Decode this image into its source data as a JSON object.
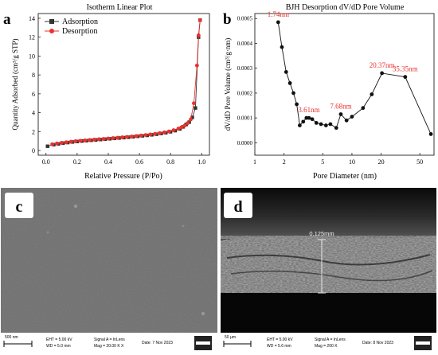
{
  "panels": {
    "a": {
      "letter": "a"
    },
    "b": {
      "letter": "b"
    },
    "c": {
      "letter": "c"
    },
    "d": {
      "letter": "d"
    }
  },
  "chart_data": [
    {
      "type": "line",
      "title": "Isotherm Linear Plot",
      "xlabel": "Relative Pressure (P/Po)",
      "ylabel": "Quantity Adsorbed (cm³/g STP)",
      "xlim": [
        -0.05,
        1.05
      ],
      "ylim": [
        -0.5,
        14.5
      ],
      "xticks": [
        "0.0",
        "0.2",
        "0.4",
        "0.6",
        "0.8",
        "1.0"
      ],
      "yticks": [
        "0",
        "2",
        "4",
        "6",
        "8",
        "10",
        "12",
        "14"
      ],
      "legend_position": "top-left",
      "series": [
        {
          "name": "Adsorption",
          "color": "#333333",
          "marker": "square",
          "x": [
            0.01,
            0.05,
            0.08,
            0.11,
            0.14,
            0.17,
            0.2,
            0.23,
            0.26,
            0.29,
            0.32,
            0.35,
            0.38,
            0.41,
            0.44,
            0.47,
            0.5,
            0.53,
            0.56,
            0.59,
            0.62,
            0.65,
            0.68,
            0.71,
            0.74,
            0.77,
            0.8,
            0.83,
            0.86,
            0.88,
            0.9,
            0.92,
            0.94,
            0.96,
            0.98,
            0.99
          ],
          "y": [
            0.45,
            0.62,
            0.7,
            0.78,
            0.84,
            0.9,
            0.95,
            1.0,
            1.04,
            1.08,
            1.12,
            1.16,
            1.2,
            1.24,
            1.28,
            1.32,
            1.36,
            1.4,
            1.45,
            1.5,
            1.55,
            1.6,
            1.66,
            1.72,
            1.8,
            1.88,
            1.98,
            2.1,
            2.28,
            2.5,
            2.75,
            3.0,
            3.5,
            4.5,
            12.0,
            13.8
          ]
        },
        {
          "name": "Desorption",
          "color": "#e8322d",
          "marker": "circle",
          "x": [
            0.99,
            0.98,
            0.97,
            0.95,
            0.93,
            0.91,
            0.89,
            0.87,
            0.85,
            0.82,
            0.79,
            0.76,
            0.73,
            0.7,
            0.67,
            0.64,
            0.61,
            0.58,
            0.55,
            0.52,
            0.49,
            0.46,
            0.43,
            0.4,
            0.37,
            0.34,
            0.31,
            0.28,
            0.25,
            0.22,
            0.19,
            0.16,
            0.13,
            0.1,
            0.07,
            0.04
          ],
          "y": [
            13.8,
            12.2,
            9.0,
            5.0,
            3.3,
            2.9,
            2.62,
            2.45,
            2.32,
            2.15,
            2.02,
            1.92,
            1.84,
            1.76,
            1.7,
            1.64,
            1.58,
            1.53,
            1.48,
            1.44,
            1.39,
            1.35,
            1.31,
            1.27,
            1.23,
            1.19,
            1.15,
            1.11,
            1.07,
            1.03,
            0.98,
            0.93,
            0.87,
            0.81,
            0.74,
            0.66
          ]
        }
      ]
    },
    {
      "type": "line",
      "title": "BJH Desorption dV/dD Pore Volume",
      "xlabel": "Pore Diameter (nm)",
      "ylabel": "dV/dD Pore Volume (cm³/g·nm)",
      "xscale": "log",
      "xlim": [
        1,
        70
      ],
      "ylim": [
        -5e-05,
        0.00052
      ],
      "xticks": [
        1,
        2,
        5,
        10,
        20,
        50
      ],
      "yticks": [
        "0.0000",
        "0.0001",
        "0.0002",
        "0.0003",
        "0.0004",
        "0.0005"
      ],
      "series": [
        {
          "color": "#111111",
          "marker": "circle",
          "x": [
            1.74,
            1.9,
            2.1,
            2.3,
            2.5,
            2.7,
            2.9,
            3.15,
            3.4,
            3.61,
            3.9,
            4.3,
            4.8,
            5.4,
            6.0,
            6.9,
            7.68,
            8.8,
            10.0,
            13.0,
            16.0,
            20.37,
            35.35,
            65.0
          ],
          "y": [
            0.000485,
            0.000385,
            0.000285,
            0.00024,
            0.0002,
            0.000155,
            7e-05,
            8.5e-05,
            0.0001,
            0.0001,
            9.5e-05,
            8e-05,
            7.5e-05,
            7e-05,
            7.5e-05,
            6e-05,
            0.000115,
            9e-05,
            0.000105,
            0.00014,
            0.000195,
            0.00028,
            0.000265,
            3.5e-05
          ]
        }
      ],
      "annotations": [
        {
          "text": "1.74nm",
          "x": 1.74,
          "y": 0.000485
        },
        {
          "text": "3.61nm",
          "x": 3.61,
          "y": 0.0001
        },
        {
          "text": "7.68nm",
          "x": 7.68,
          "y": 0.000115
        },
        {
          "text": "20.37nm",
          "x": 20.37,
          "y": 0.00028
        },
        {
          "text": "35.35nm",
          "x": 35.35,
          "y": 0.000265
        }
      ],
      "annotation_color": "#e8322d"
    }
  ],
  "sem": {
    "c": {
      "scale_label": "500 nm",
      "ht": "EHT = 5.00 kV",
      "wd": "WD = 5.0 mm",
      "signal": "Signal A = InLens",
      "mag": "Mag = 20.00 K X",
      "date": "Date: 7 Nov 2023",
      "logo": "ZEISS"
    },
    "d": {
      "scale_label": "50 µm",
      "ht": "EHT = 5.00 kV",
      "wd": "WD = 5.6 mm",
      "signal": "Signal A = InLens",
      "mag": "Mag = 200 X",
      "date": "Date: 8 Nov 2023",
      "logo": "ZEISS",
      "measurement": "0.125mm"
    }
  }
}
